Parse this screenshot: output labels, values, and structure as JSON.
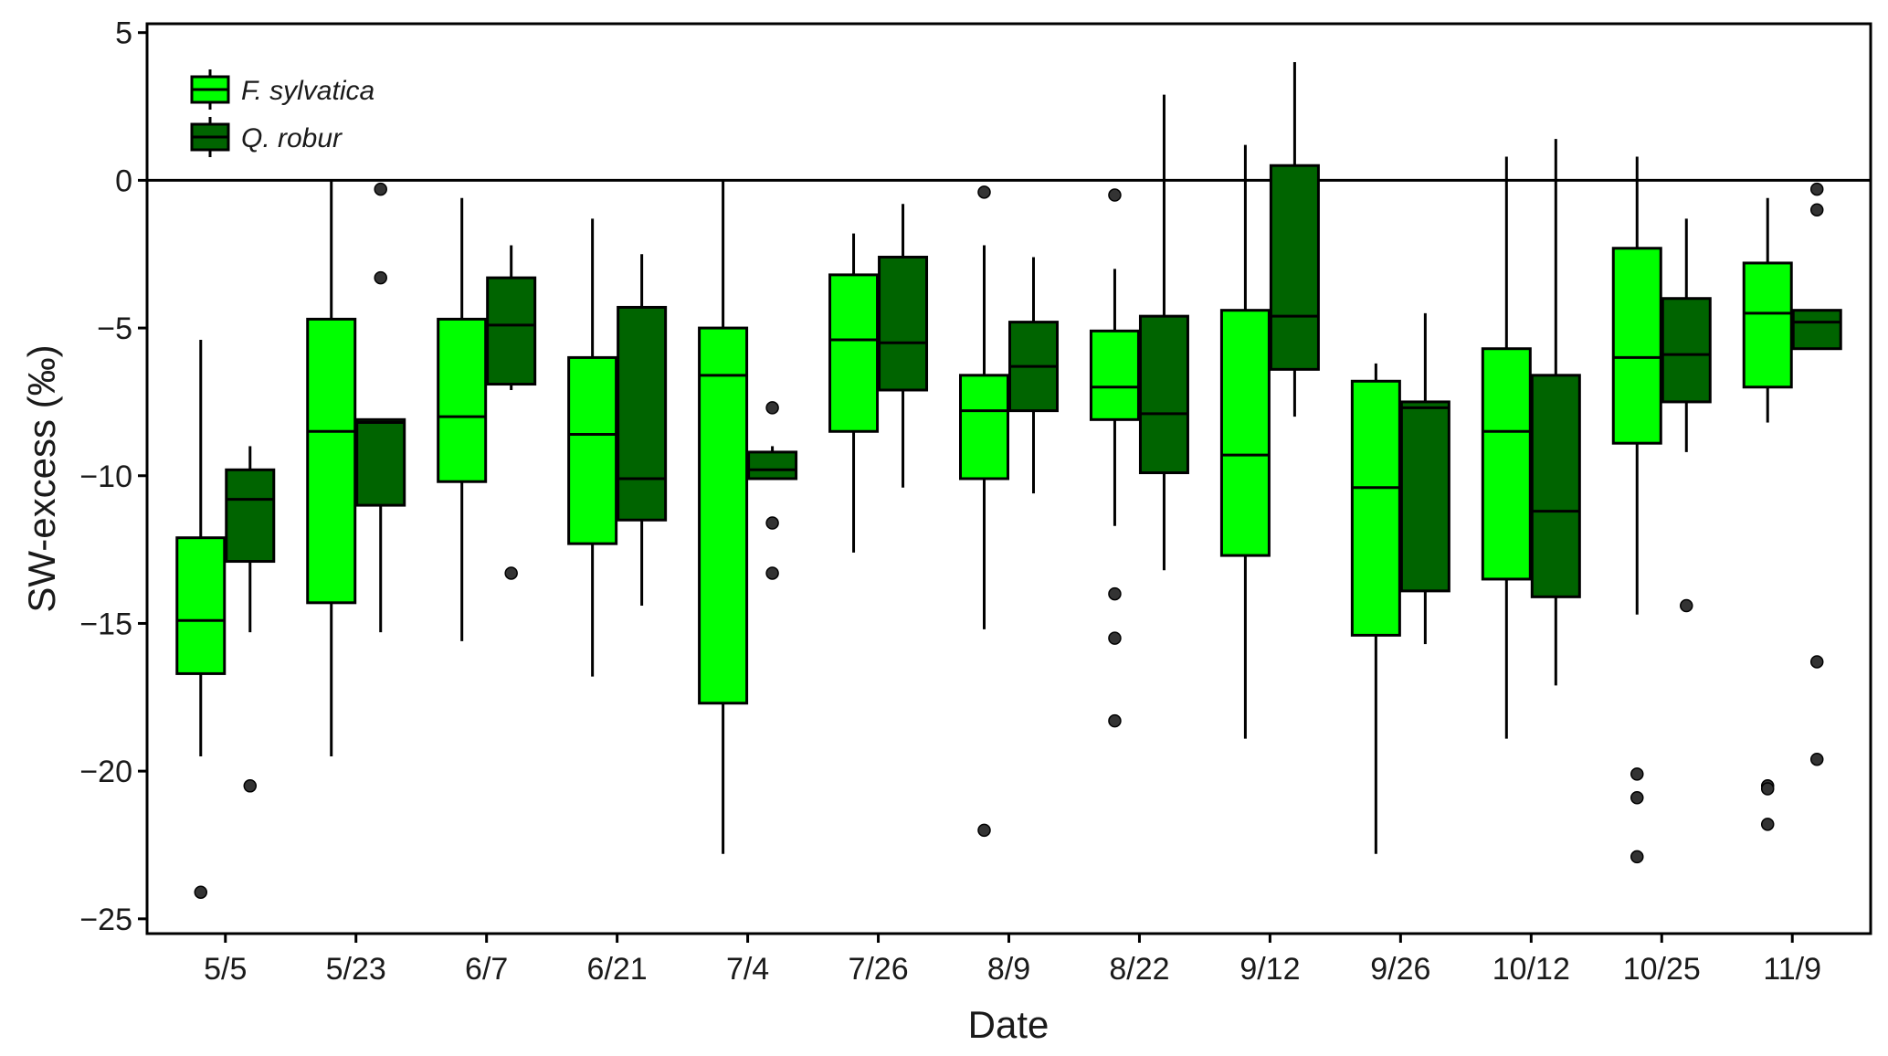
{
  "chart_data": {
    "type": "boxplot",
    "xlabel": "Date",
    "ylabel": "SW-excess (‰)",
    "ylim": [
      -25.5,
      5.3
    ],
    "yticks": [
      5,
      0,
      -5,
      -10,
      -15,
      -20,
      -25
    ],
    "ytick_labels": [
      "5",
      "0",
      "−5",
      "−10",
      "−15",
      "−20",
      "−25"
    ],
    "reference_line": 0,
    "grid": false,
    "legend_position": "top-left",
    "categories": [
      "5/5",
      "5/23",
      "6/7",
      "6/21",
      "7/4",
      "7/26",
      "8/9",
      "8/22",
      "9/12",
      "9/26",
      "10/12",
      "10/25",
      "11/9"
    ],
    "series": [
      {
        "name": "F. sylvatica",
        "color": "#00ff00",
        "boxes": [
          {
            "whisker_low": -19.5,
            "q1": -16.7,
            "median": -14.9,
            "q3": -12.1,
            "whisker_high": -5.4,
            "outliers": [
              -24.1
            ]
          },
          {
            "whisker_low": -19.5,
            "q1": -14.3,
            "median": -8.5,
            "q3": -4.7,
            "whisker_high": 0.0,
            "outliers": []
          },
          {
            "whisker_low": -15.6,
            "q1": -10.2,
            "median": -8.0,
            "q3": -4.7,
            "whisker_high": -0.6,
            "outliers": []
          },
          {
            "whisker_low": -16.8,
            "q1": -12.3,
            "median": -8.6,
            "q3": -6.0,
            "whisker_high": -1.3,
            "outliers": []
          },
          {
            "whisker_low": -22.8,
            "q1": -17.7,
            "median": -6.6,
            "q3": -5.0,
            "whisker_high": 0.0,
            "outliers": []
          },
          {
            "whisker_low": -12.6,
            "q1": -8.5,
            "median": -5.4,
            "q3": -3.2,
            "whisker_high": -1.8,
            "outliers": []
          },
          {
            "whisker_low": -15.2,
            "q1": -10.1,
            "median": -7.8,
            "q3": -6.6,
            "whisker_high": -2.2,
            "outliers": [
              -0.4,
              -22.0
            ]
          },
          {
            "whisker_low": -11.7,
            "q1": -8.1,
            "median": -7.0,
            "q3": -5.1,
            "whisker_high": -3.0,
            "outliers": [
              -0.5,
              -14.0,
              -15.5,
              -18.3
            ]
          },
          {
            "whisker_low": -18.9,
            "q1": -12.7,
            "median": -9.3,
            "q3": -4.4,
            "whisker_high": 1.2,
            "outliers": []
          },
          {
            "whisker_low": -22.8,
            "q1": -15.4,
            "median": -10.4,
            "q3": -6.8,
            "whisker_high": -6.2,
            "outliers": []
          },
          {
            "whisker_low": -18.9,
            "q1": -13.5,
            "median": -8.5,
            "q3": -5.7,
            "whisker_high": 0.8,
            "outliers": []
          },
          {
            "whisker_low": -14.7,
            "q1": -8.9,
            "median": -6.0,
            "q3": -2.3,
            "whisker_high": 0.8,
            "outliers": [
              -20.1,
              -20.9,
              -22.9
            ]
          },
          {
            "whisker_low": -8.2,
            "q1": -7.0,
            "median": -4.5,
            "q3": -2.8,
            "whisker_high": -0.6,
            "outliers": [
              -20.5,
              -20.6,
              -21.8
            ]
          }
        ]
      },
      {
        "name": "Q. robur",
        "color": "#006400",
        "boxes": [
          {
            "whisker_low": -15.3,
            "q1": -12.9,
            "median": -10.8,
            "q3": -9.8,
            "whisker_high": -9.0,
            "outliers": [
              -20.5
            ]
          },
          {
            "whisker_low": -15.3,
            "q1": -11.0,
            "median": -8.2,
            "q3": -8.1,
            "whisker_high": -8.1,
            "outliers": [
              -0.3,
              -3.3
            ]
          },
          {
            "whisker_low": -7.1,
            "q1": -6.9,
            "median": -4.9,
            "q3": -3.3,
            "whisker_high": -2.2,
            "outliers": [
              -13.3
            ]
          },
          {
            "whisker_low": -14.4,
            "q1": -11.5,
            "median": -10.1,
            "q3": -4.3,
            "whisker_high": -2.5,
            "outliers": []
          },
          {
            "whisker_low": -10.1,
            "q1": -10.1,
            "median": -9.8,
            "q3": -9.2,
            "whisker_high": -9.0,
            "outliers": [
              -7.7,
              -11.6,
              -13.3
            ]
          },
          {
            "whisker_low": -10.4,
            "q1": -7.1,
            "median": -5.5,
            "q3": -2.6,
            "whisker_high": -0.8,
            "outliers": []
          },
          {
            "whisker_low": -10.6,
            "q1": -7.8,
            "median": -6.3,
            "q3": -4.8,
            "whisker_high": -2.6,
            "outliers": []
          },
          {
            "whisker_low": -13.2,
            "q1": -9.9,
            "median": -7.9,
            "q3": -4.6,
            "whisker_high": 2.9,
            "outliers": []
          },
          {
            "whisker_low": -8.0,
            "q1": -6.4,
            "median": -4.6,
            "q3": 0.5,
            "whisker_high": 4.0,
            "outliers": []
          },
          {
            "whisker_low": -15.7,
            "q1": -13.9,
            "median": -7.7,
            "q3": -7.5,
            "whisker_high": -4.5,
            "outliers": []
          },
          {
            "whisker_low": -17.1,
            "q1": -14.1,
            "median": -11.2,
            "q3": -6.6,
            "whisker_high": 1.4,
            "outliers": []
          },
          {
            "whisker_low": -9.2,
            "q1": -7.5,
            "median": -5.9,
            "q3": -4.0,
            "whisker_high": -1.3,
            "outliers": [
              -14.4
            ]
          },
          {
            "whisker_low": -5.7,
            "q1": -5.7,
            "median": -4.8,
            "q3": -4.4,
            "whisker_high": -4.4,
            "outliers": [
              -0.3,
              -1.0,
              -16.3,
              -19.6
            ]
          }
        ]
      }
    ]
  }
}
